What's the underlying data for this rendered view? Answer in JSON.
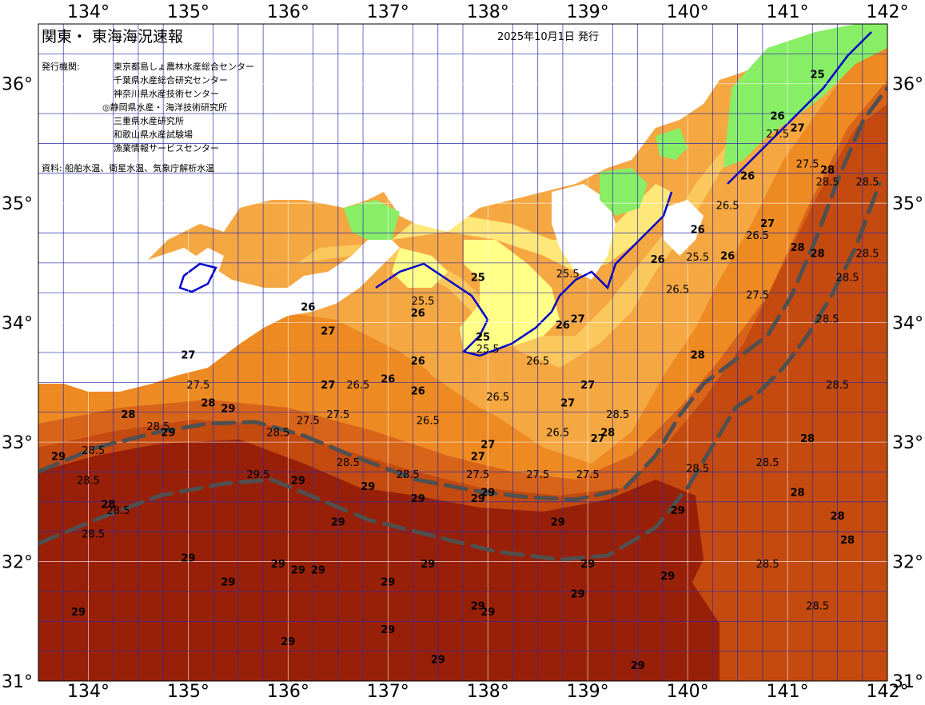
{
  "header": {
    "title": "関東・ 東海海況速報",
    "issue_date": "2025年10月1日 発行",
    "agencies_label": "発行機関:",
    "agencies": [
      "東京都島しょ農林水産総合センター",
      "千葉県水産総合研究センター",
      "神奈川県水産技術センター",
      "◎静岡県水産・ 海洋技術研究所",
      "三重県水産研究所",
      "和歌山県水産試験場",
      "漁業情報サービスセンター"
    ],
    "source": "資料: 船舶水温、衛星水温、気象庁解析水温"
  },
  "axes": {
    "lon_labels": [
      "134°",
      "135°",
      "136°",
      "137°",
      "138°",
      "139°",
      "140°",
      "141°",
      "142°"
    ],
    "lat_labels": [
      "36°",
      "35°",
      "34°",
      "33°",
      "32°",
      "31°"
    ],
    "lon_range": [
      133.5,
      142.0
    ],
    "lat_range": [
      31.0,
      36.5
    ]
  },
  "contour_labels": [
    {
      "t": "25",
      "lon": 137.9,
      "lat": 34.35
    },
    {
      "t": "25.5",
      "lon": 137.35,
      "lat": 34.15
    },
    {
      "t": "26",
      "lon": 137.3,
      "lat": 34.05
    },
    {
      "t": "25",
      "lon": 137.95,
      "lat": 33.85
    },
    {
      "t": "25.5",
      "lon": 138.0,
      "lat": 33.75
    },
    {
      "t": "25.5",
      "lon": 138.8,
      "lat": 34.38
    },
    {
      "t": "26",
      "lon": 138.75,
      "lat": 33.95
    },
    {
      "t": "27",
      "lon": 138.9,
      "lat": 34.0
    },
    {
      "t": "26",
      "lon": 139.7,
      "lat": 34.5
    },
    {
      "t": "25.5",
      "lon": 140.1,
      "lat": 34.52
    },
    {
      "t": "26",
      "lon": 140.4,
      "lat": 34.53
    },
    {
      "t": "26",
      "lon": 140.1,
      "lat": 34.75
    },
    {
      "t": "26.5",
      "lon": 139.9,
      "lat": 34.25
    },
    {
      "t": "26.5",
      "lon": 140.7,
      "lat": 34.7
    },
    {
      "t": "27",
      "lon": 140.8,
      "lat": 34.8
    },
    {
      "t": "26",
      "lon": 140.6,
      "lat": 35.2
    },
    {
      "t": "26.5",
      "lon": 140.4,
      "lat": 34.95
    },
    {
      "t": "27.5",
      "lon": 140.7,
      "lat": 34.2
    },
    {
      "t": "28",
      "lon": 141.1,
      "lat": 34.6
    },
    {
      "t": "28",
      "lon": 141.4,
      "lat": 35.25
    },
    {
      "t": "28.5",
      "lon": 141.4,
      "lat": 35.15
    },
    {
      "t": "28.5",
      "lon": 141.8,
      "lat": 35.15
    },
    {
      "t": "28",
      "lon": 141.3,
      "lat": 34.55
    },
    {
      "t": "28.5",
      "lon": 141.6,
      "lat": 34.35
    },
    {
      "t": "28.5",
      "lon": 141.8,
      "lat": 34.55
    },
    {
      "t": "28.5",
      "lon": 141.4,
      "lat": 34.0
    },
    {
      "t": "28.5",
      "lon": 141.5,
      "lat": 33.45
    },
    {
      "t": "28",
      "lon": 141.2,
      "lat": 33.0
    },
    {
      "t": "28.5",
      "lon": 140.8,
      "lat": 32.8
    },
    {
      "t": "28",
      "lon": 141.1,
      "lat": 32.55
    },
    {
      "t": "28",
      "lon": 141.5,
      "lat": 32.35
    },
    {
      "t": "28",
      "lon": 141.6,
      "lat": 32.15
    },
    {
      "t": "28.5",
      "lon": 140.8,
      "lat": 31.95
    },
    {
      "t": "28.5",
      "lon": 141.3,
      "lat": 31.6
    },
    {
      "t": "27.5",
      "lon": 140.9,
      "lat": 35.55
    },
    {
      "t": "27",
      "lon": 141.1,
      "lat": 35.6
    },
    {
      "t": "26",
      "lon": 140.9,
      "lat": 35.7
    },
    {
      "t": "25",
      "lon": 141.3,
      "lat": 36.05
    },
    {
      "t": "27.5",
      "lon": 141.2,
      "lat": 35.3
    },
    {
      "t": "26",
      "lon": 136.2,
      "lat": 34.1
    },
    {
      "t": "27",
      "lon": 136.4,
      "lat": 33.9
    },
    {
      "t": "27",
      "lon": 135.0,
      "lat": 33.7
    },
    {
      "t": "27.5",
      "lon": 135.1,
      "lat": 33.45
    },
    {
      "t": "28",
      "lon": 134.4,
      "lat": 33.2
    },
    {
      "t": "28.5",
      "lon": 134.7,
      "lat": 33.1
    },
    {
      "t": "29",
      "lon": 134.8,
      "lat": 33.05
    },
    {
      "t": "28",
      "lon": 135.2,
      "lat": 33.3
    },
    {
      "t": "29",
      "lon": 135.4,
      "lat": 33.25
    },
    {
      "t": "28.5",
      "lon": 135.9,
      "lat": 33.05
    },
    {
      "t": "27.5",
      "lon": 136.5,
      "lat": 33.2
    },
    {
      "t": "27.5",
      "lon": 136.2,
      "lat": 33.15
    },
    {
      "t": "28.5",
      "lon": 136.6,
      "lat": 32.8
    },
    {
      "t": "26.5",
      "lon": 136.7,
      "lat": 33.45
    },
    {
      "t": "27",
      "lon": 136.4,
      "lat": 33.45
    },
    {
      "t": "26",
      "lon": 137.0,
      "lat": 33.5
    },
    {
      "t": "26",
      "lon": 137.3,
      "lat": 33.4
    },
    {
      "t": "26",
      "lon": 137.3,
      "lat": 33.65
    },
    {
      "t": "26.5",
      "lon": 137.4,
      "lat": 33.15
    },
    {
      "t": "26.5",
      "lon": 138.1,
      "lat": 33.35
    },
    {
      "t": "26.5",
      "lon": 138.5,
      "lat": 33.65
    },
    {
      "t": "27",
      "lon": 138.8,
      "lat": 33.3
    },
    {
      "t": "27",
      "lon": 139.0,
      "lat": 33.45
    },
    {
      "t": "26.5",
      "lon": 138.7,
      "lat": 33.05
    },
    {
      "t": "27",
      "lon": 137.9,
      "lat": 32.85
    },
    {
      "t": "27",
      "lon": 138.0,
      "lat": 32.95
    },
    {
      "t": "27.5",
      "lon": 137.9,
      "lat": 32.7
    },
    {
      "t": "27.5",
      "lon": 138.5,
      "lat": 32.7
    },
    {
      "t": "27.5",
      "lon": 139.0,
      "lat": 32.7
    },
    {
      "t": "27",
      "lon": 139.1,
      "lat": 33.0
    },
    {
      "t": "28",
      "lon": 139.2,
      "lat": 33.05
    },
    {
      "t": "28.5",
      "lon": 139.3,
      "lat": 33.2
    },
    {
      "t": "28",
      "lon": 140.1,
      "lat": 33.7
    },
    {
      "t": "28.5",
      "lon": 140.1,
      "lat": 32.75
    },
    {
      "t": "28.5",
      "lon": 137.2,
      "lat": 32.7
    },
    {
      "t": "29",
      "lon": 137.3,
      "lat": 32.5
    },
    {
      "t": "29",
      "lon": 137.9,
      "lat": 32.5
    },
    {
      "t": "29",
      "lon": 138.0,
      "lat": 32.55
    },
    {
      "t": "29",
      "lon": 136.8,
      "lat": 32.6
    },
    {
      "t": "29",
      "lon": 136.5,
      "lat": 32.3
    },
    {
      "t": "29",
      "lon": 136.1,
      "lat": 32.65
    },
    {
      "t": "29",
      "lon": 139.9,
      "lat": 32.4
    },
    {
      "t": "29",
      "lon": 138.7,
      "lat": 32.3
    },
    {
      "t": "29",
      "lon": 137.4,
      "lat": 31.95
    },
    {
      "t": "29",
      "lon": 139.0,
      "lat": 31.95
    },
    {
      "t": "29",
      "lon": 136.1,
      "lat": 31.9
    },
    {
      "t": "29",
      "lon": 136.3,
      "lat": 31.9
    },
    {
      "t": "29",
      "lon": 135.9,
      "lat": 31.95
    },
    {
      "t": "29",
      "lon": 135.0,
      "lat": 32.0
    },
    {
      "t": "29",
      "lon": 135.4,
      "lat": 31.8
    },
    {
      "t": "29",
      "lon": 137.0,
      "lat": 31.8
    },
    {
      "t": "29",
      "lon": 137.9,
      "lat": 31.6
    },
    {
      "t": "29",
      "lon": 138.0,
      "lat": 31.55
    },
    {
      "t": "29",
      "lon": 138.9,
      "lat": 31.7
    },
    {
      "t": "29",
      "lon": 139.8,
      "lat": 31.85
    },
    {
      "t": "29",
      "lon": 137.0,
      "lat": 31.4
    },
    {
      "t": "29",
      "lon": 136.0,
      "lat": 31.3
    },
    {
      "t": "29",
      "lon": 137.5,
      "lat": 31.15
    },
    {
      "t": "29",
      "lon": 139.5,
      "lat": 31.1
    },
    {
      "t": "29",
      "lon": 133.9,
      "lat": 31.55
    },
    {
      "t": "29",
      "lon": 133.7,
      "lat": 32.85
    },
    {
      "t": "28.5",
      "lon": 134.0,
      "lat": 32.65
    },
    {
      "t": "28.5",
      "lon": 134.05,
      "lat": 32.9
    },
    {
      "t": "28",
      "lon": 134.2,
      "lat": 32.45
    },
    {
      "t": "28.5",
      "lon": 134.3,
      "lat": 32.4
    },
    {
      "t": "28.5",
      "lon": 134.05,
      "lat": 32.2
    },
    {
      "t": "29.5",
      "lon": 135.7,
      "lat": 32.7
    }
  ],
  "colors": {
    "temp_25": "#ffff88",
    "temp_25_5": "#ffe87a",
    "temp_26": "#fbc85e",
    "temp_26_5": "#f5a742",
    "temp_27": "#ee8a22",
    "temp_28": "#d8641a",
    "temp_28_5": "#c44a10",
    "temp_29": "#992008",
    "land": "#ffffff",
    "cold_water": "#88ee66",
    "isotherm_25": "#0000cc",
    "grid": "#2a2aa8",
    "kuroshio_axis": "#505050"
  }
}
